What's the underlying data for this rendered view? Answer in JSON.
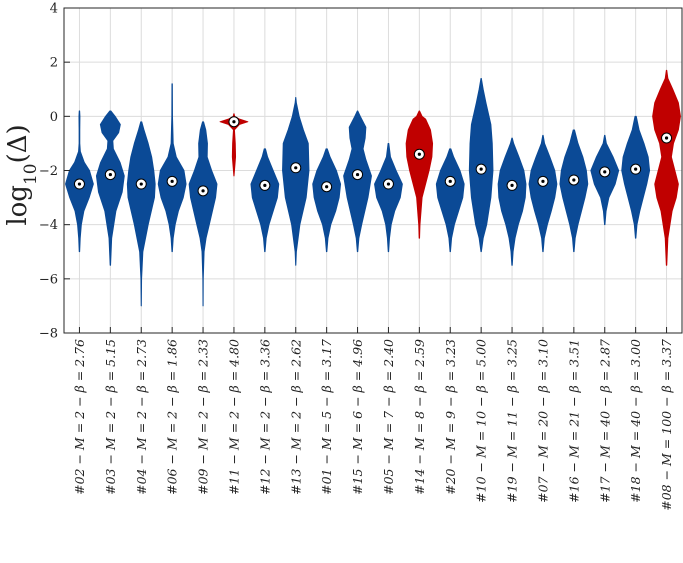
{
  "chart_data": {
    "type": "violin",
    "title": "",
    "xlabel": "",
    "ylabel": "log10(Δ)",
    "ylabel_parts": {
      "base": "log",
      "subscript": "10",
      "arg": "(Δ)"
    },
    "ylim": [
      -8,
      4
    ],
    "yticks": [
      -8,
      -6,
      -4,
      -2,
      0,
      2,
      4
    ],
    "grid": true,
    "colors": {
      "blue": "#0b4a96",
      "red": "#c00000",
      "median_fill": "#ffffff",
      "median_edge": "#000000"
    },
    "categories": [
      "#02 − M = 2 − β = 2.76",
      "#03 − M = 2 − β = 5.15",
      "#04 − M = 2 − β = 2.73",
      "#06 − M = 2 − β = 1.86",
      "#09 − M = 2 − β = 2.33",
      "#11 − M = 2 − β = 4.80",
      "#12 − M = 2 − β = 3.36",
      "#13 − M = 2 − β = 2.62",
      "#01 − M = 5 − β = 3.17",
      "#15 − M = 6 − β = 4.96",
      "#05 − M = 7 − β = 2.40",
      "#14 − M = 8 − β = 2.59",
      "#20 − M = 9 − β = 3.23",
      "#10 − M = 10 − β = 5.00",
      "#19 − M = 11 − β = 3.25",
      "#07 − M = 20 − β = 3.10",
      "#16 − M = 21 − β = 3.51",
      "#17 − M = 40 − β = 2.87",
      "#18 − M = 40 − β = 3.00",
      "#08 − M = 100 − β = 3.37"
    ],
    "series": [
      {
        "color": "blue",
        "median": -2.5,
        "profile": [
          [
            -5.0,
            0.02
          ],
          [
            -4.5,
            0.06
          ],
          [
            -4.0,
            0.14
          ],
          [
            -3.5,
            0.32
          ],
          [
            -3.0,
            0.7
          ],
          [
            -2.5,
            1.0
          ],
          [
            -2.0,
            0.72
          ],
          [
            -1.7,
            0.35
          ],
          [
            -1.3,
            0.07
          ],
          [
            -1.0,
            0.03
          ],
          [
            -0.5,
            0.03
          ],
          [
            0.0,
            0.04
          ],
          [
            0.2,
            0.02
          ]
        ]
      },
      {
        "color": "blue",
        "median": -2.15,
        "profile": [
          [
            -5.5,
            0.02
          ],
          [
            -4.5,
            0.1
          ],
          [
            -3.5,
            0.4
          ],
          [
            -2.8,
            0.85
          ],
          [
            -2.2,
            1.0
          ],
          [
            -1.7,
            0.7
          ],
          [
            -1.2,
            0.22
          ],
          [
            -0.9,
            0.18
          ],
          [
            -0.6,
            0.6
          ],
          [
            -0.3,
            0.72
          ],
          [
            0.0,
            0.35
          ],
          [
            0.2,
            0.04
          ]
        ]
      },
      {
        "color": "blue",
        "median": -2.5,
        "profile": [
          [
            -7.0,
            0.01
          ],
          [
            -6.0,
            0.03
          ],
          [
            -5.0,
            0.12
          ],
          [
            -4.0,
            0.5
          ],
          [
            -3.0,
            0.95
          ],
          [
            -2.5,
            1.0
          ],
          [
            -2.0,
            0.9
          ],
          [
            -1.5,
            0.75
          ],
          [
            -1.0,
            0.5
          ],
          [
            -0.5,
            0.2
          ],
          [
            -0.2,
            0.04
          ]
        ]
      },
      {
        "color": "blue",
        "median": -2.4,
        "profile": [
          [
            -5.0,
            0.02
          ],
          [
            -4.5,
            0.08
          ],
          [
            -4.0,
            0.22
          ],
          [
            -3.5,
            0.45
          ],
          [
            -3.0,
            0.8
          ],
          [
            -2.5,
            1.0
          ],
          [
            -2.0,
            0.85
          ],
          [
            -1.5,
            0.3
          ],
          [
            -1.0,
            0.08
          ],
          [
            0.0,
            0.03
          ],
          [
            1.2,
            0.02
          ]
        ]
      },
      {
        "color": "blue",
        "median": -2.75,
        "profile": [
          [
            -7.0,
            0.01
          ],
          [
            -6.0,
            0.02
          ],
          [
            -5.0,
            0.08
          ],
          [
            -4.5,
            0.22
          ],
          [
            -4.0,
            0.45
          ],
          [
            -3.0,
            0.9
          ],
          [
            -2.5,
            1.0
          ],
          [
            -2.0,
            0.62
          ],
          [
            -1.5,
            0.3
          ],
          [
            -1.0,
            0.32
          ],
          [
            -0.5,
            0.2
          ],
          [
            -0.2,
            0.04
          ]
        ]
      },
      {
        "color": "red",
        "median": -0.2,
        "profile": [
          [
            -2.2,
            0.01
          ],
          [
            -1.5,
            0.12
          ],
          [
            -1.0,
            0.1
          ],
          [
            -0.5,
            0.04
          ],
          [
            -0.3,
            0.4
          ],
          [
            -0.2,
            1.0
          ],
          [
            -0.1,
            0.4
          ],
          [
            0.0,
            0.06
          ],
          [
            0.1,
            0.01
          ]
        ]
      },
      {
        "color": "blue",
        "median": -2.55,
        "profile": [
          [
            -5.0,
            0.02
          ],
          [
            -4.5,
            0.1
          ],
          [
            -4.0,
            0.3
          ],
          [
            -3.5,
            0.6
          ],
          [
            -3.0,
            0.9
          ],
          [
            -2.5,
            1.0
          ],
          [
            -2.0,
            0.6
          ],
          [
            -1.5,
            0.2
          ],
          [
            -1.2,
            0.05
          ]
        ]
      },
      {
        "color": "blue",
        "median": -1.9,
        "profile": [
          [
            -5.5,
            0.01
          ],
          [
            -5.0,
            0.05
          ],
          [
            -4.0,
            0.3
          ],
          [
            -3.0,
            0.75
          ],
          [
            -2.0,
            0.95
          ],
          [
            -1.0,
            0.9
          ],
          [
            -0.5,
            0.55
          ],
          [
            0.0,
            0.25
          ],
          [
            0.5,
            0.05
          ],
          [
            0.7,
            0.01
          ]
        ]
      },
      {
        "color": "blue",
        "median": -2.6,
        "profile": [
          [
            -5.0,
            0.02
          ],
          [
            -4.5,
            0.1
          ],
          [
            -4.0,
            0.3
          ],
          [
            -3.5,
            0.65
          ],
          [
            -3.0,
            0.9
          ],
          [
            -2.5,
            1.0
          ],
          [
            -2.0,
            0.7
          ],
          [
            -1.5,
            0.25
          ],
          [
            -1.2,
            0.05
          ]
        ]
      },
      {
        "color": "blue",
        "median": -2.15,
        "profile": [
          [
            -5.0,
            0.02
          ],
          [
            -4.5,
            0.1
          ],
          [
            -4.0,
            0.3
          ],
          [
            -3.0,
            0.75
          ],
          [
            -2.2,
            1.0
          ],
          [
            -1.6,
            0.6
          ],
          [
            -1.2,
            0.4
          ],
          [
            -0.8,
            0.55
          ],
          [
            -0.4,
            0.6
          ],
          [
            0.0,
            0.2
          ],
          [
            0.2,
            0.02
          ]
        ]
      },
      {
        "color": "blue",
        "median": -2.5,
        "profile": [
          [
            -5.0,
            0.02
          ],
          [
            -4.5,
            0.08
          ],
          [
            -4.0,
            0.2
          ],
          [
            -3.5,
            0.45
          ],
          [
            -3.0,
            0.85
          ],
          [
            -2.5,
            1.0
          ],
          [
            -2.0,
            0.55
          ],
          [
            -1.5,
            0.15
          ],
          [
            -1.0,
            0.03
          ]
        ]
      },
      {
        "color": "red",
        "median": -1.4,
        "profile": [
          [
            -4.5,
            0.02
          ],
          [
            -4.0,
            0.05
          ],
          [
            -3.0,
            0.2
          ],
          [
            -2.5,
            0.45
          ],
          [
            -2.0,
            0.7
          ],
          [
            -1.5,
            0.9
          ],
          [
            -1.0,
            0.95
          ],
          [
            -0.5,
            0.8
          ],
          [
            -0.1,
            0.45
          ],
          [
            0.0,
            0.2
          ],
          [
            0.2,
            0.02
          ]
        ]
      },
      {
        "color": "blue",
        "median": -2.4,
        "profile": [
          [
            -5.0,
            0.02
          ],
          [
            -4.5,
            0.1
          ],
          [
            -4.0,
            0.3
          ],
          [
            -3.5,
            0.6
          ],
          [
            -3.0,
            0.9
          ],
          [
            -2.5,
            1.0
          ],
          [
            -2.0,
            0.7
          ],
          [
            -1.5,
            0.25
          ],
          [
            -1.2,
            0.05
          ]
        ]
      },
      {
        "color": "blue",
        "median": -1.95,
        "profile": [
          [
            -5.0,
            0.02
          ],
          [
            -4.5,
            0.15
          ],
          [
            -4.0,
            0.4
          ],
          [
            -3.0,
            0.7
          ],
          [
            -2.0,
            0.85
          ],
          [
            -1.0,
            0.8
          ],
          [
            -0.3,
            0.7
          ],
          [
            0.5,
            0.35
          ],
          [
            1.0,
            0.15
          ],
          [
            1.4,
            0.02
          ]
        ]
      },
      {
        "color": "blue",
        "median": -2.55,
        "profile": [
          [
            -5.5,
            0.02
          ],
          [
            -5.0,
            0.08
          ],
          [
            -4.5,
            0.22
          ],
          [
            -4.0,
            0.45
          ],
          [
            -3.5,
            0.75
          ],
          [
            -3.0,
            0.95
          ],
          [
            -2.5,
            1.0
          ],
          [
            -2.0,
            0.85
          ],
          [
            -1.5,
            0.5
          ],
          [
            -1.0,
            0.12
          ],
          [
            -0.8,
            0.02
          ]
        ]
      },
      {
        "color": "blue",
        "median": -2.4,
        "profile": [
          [
            -5.0,
            0.02
          ],
          [
            -4.5,
            0.1
          ],
          [
            -4.0,
            0.32
          ],
          [
            -3.5,
            0.6
          ],
          [
            -3.0,
            0.85
          ],
          [
            -2.5,
            1.0
          ],
          [
            -2.0,
            0.85
          ],
          [
            -1.5,
            0.5
          ],
          [
            -1.0,
            0.12
          ],
          [
            -0.7,
            0.02
          ]
        ]
      },
      {
        "color": "blue",
        "median": -2.35,
        "profile": [
          [
            -5.0,
            0.02
          ],
          [
            -4.5,
            0.1
          ],
          [
            -4.0,
            0.3
          ],
          [
            -3.5,
            0.55
          ],
          [
            -3.0,
            0.8
          ],
          [
            -2.5,
            1.0
          ],
          [
            -2.0,
            0.9
          ],
          [
            -1.5,
            0.65
          ],
          [
            -1.0,
            0.3
          ],
          [
            -0.5,
            0.05
          ]
        ]
      },
      {
        "color": "blue",
        "median": -2.05,
        "profile": [
          [
            -4.0,
            0.02
          ],
          [
            -3.5,
            0.1
          ],
          [
            -3.0,
            0.3
          ],
          [
            -2.5,
            0.75
          ],
          [
            -2.0,
            1.0
          ],
          [
            -1.5,
            0.6
          ],
          [
            -1.0,
            0.12
          ],
          [
            -0.7,
            0.02
          ]
        ]
      },
      {
        "color": "blue",
        "median": -1.95,
        "profile": [
          [
            -4.5,
            0.02
          ],
          [
            -4.0,
            0.1
          ],
          [
            -3.5,
            0.3
          ],
          [
            -3.0,
            0.55
          ],
          [
            -2.5,
            0.8
          ],
          [
            -2.0,
            1.0
          ],
          [
            -1.5,
            0.9
          ],
          [
            -1.0,
            0.6
          ],
          [
            -0.5,
            0.25
          ],
          [
            0.0,
            0.05
          ]
        ]
      },
      {
        "color": "red",
        "median": -0.8,
        "profile": [
          [
            -5.5,
            0.02
          ],
          [
            -4.5,
            0.1
          ],
          [
            -3.5,
            0.4
          ],
          [
            -3.0,
            0.7
          ],
          [
            -2.5,
            0.85
          ],
          [
            -2.0,
            0.6
          ],
          [
            -1.5,
            0.35
          ],
          [
            -1.0,
            0.5
          ],
          [
            -0.5,
            0.85
          ],
          [
            0.0,
            1.0
          ],
          [
            0.5,
            0.85
          ],
          [
            1.0,
            0.45
          ],
          [
            1.4,
            0.1
          ],
          [
            1.7,
            0.02
          ]
        ]
      }
    ]
  }
}
